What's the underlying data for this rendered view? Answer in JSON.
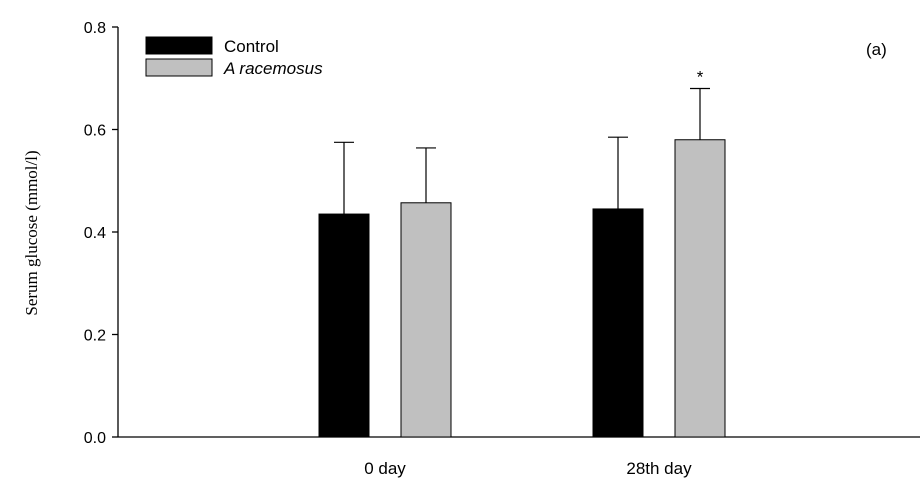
{
  "chart_data": {
    "type": "bar",
    "panel_label": "(a)",
    "ylabel": "Serum glucose (mmol/l)",
    "xlabel": "",
    "ylim": [
      0,
      0.8
    ],
    "yticks": [
      0.0,
      0.2,
      0.4,
      0.6,
      0.8
    ],
    "ytick_labels": [
      "0.0",
      "0.2",
      "0.4",
      "0.6",
      "0.8"
    ],
    "categories": [
      "0 day",
      "28th day"
    ],
    "legend_position": "top-left",
    "grid": false,
    "series": [
      {
        "name": "Control",
        "name_italic": false,
        "color": "#000000",
        "values": [
          0.435,
          0.445
        ],
        "errors": [
          0.14,
          0.14
        ],
        "annotations": [
          "",
          ""
        ]
      },
      {
        "name": "A racemosus",
        "name_italic": true,
        "color": "#c0c0c0",
        "values": [
          0.457,
          0.58
        ],
        "errors": [
          0.107,
          0.1
        ],
        "annotations": [
          "",
          "*"
        ]
      }
    ]
  }
}
